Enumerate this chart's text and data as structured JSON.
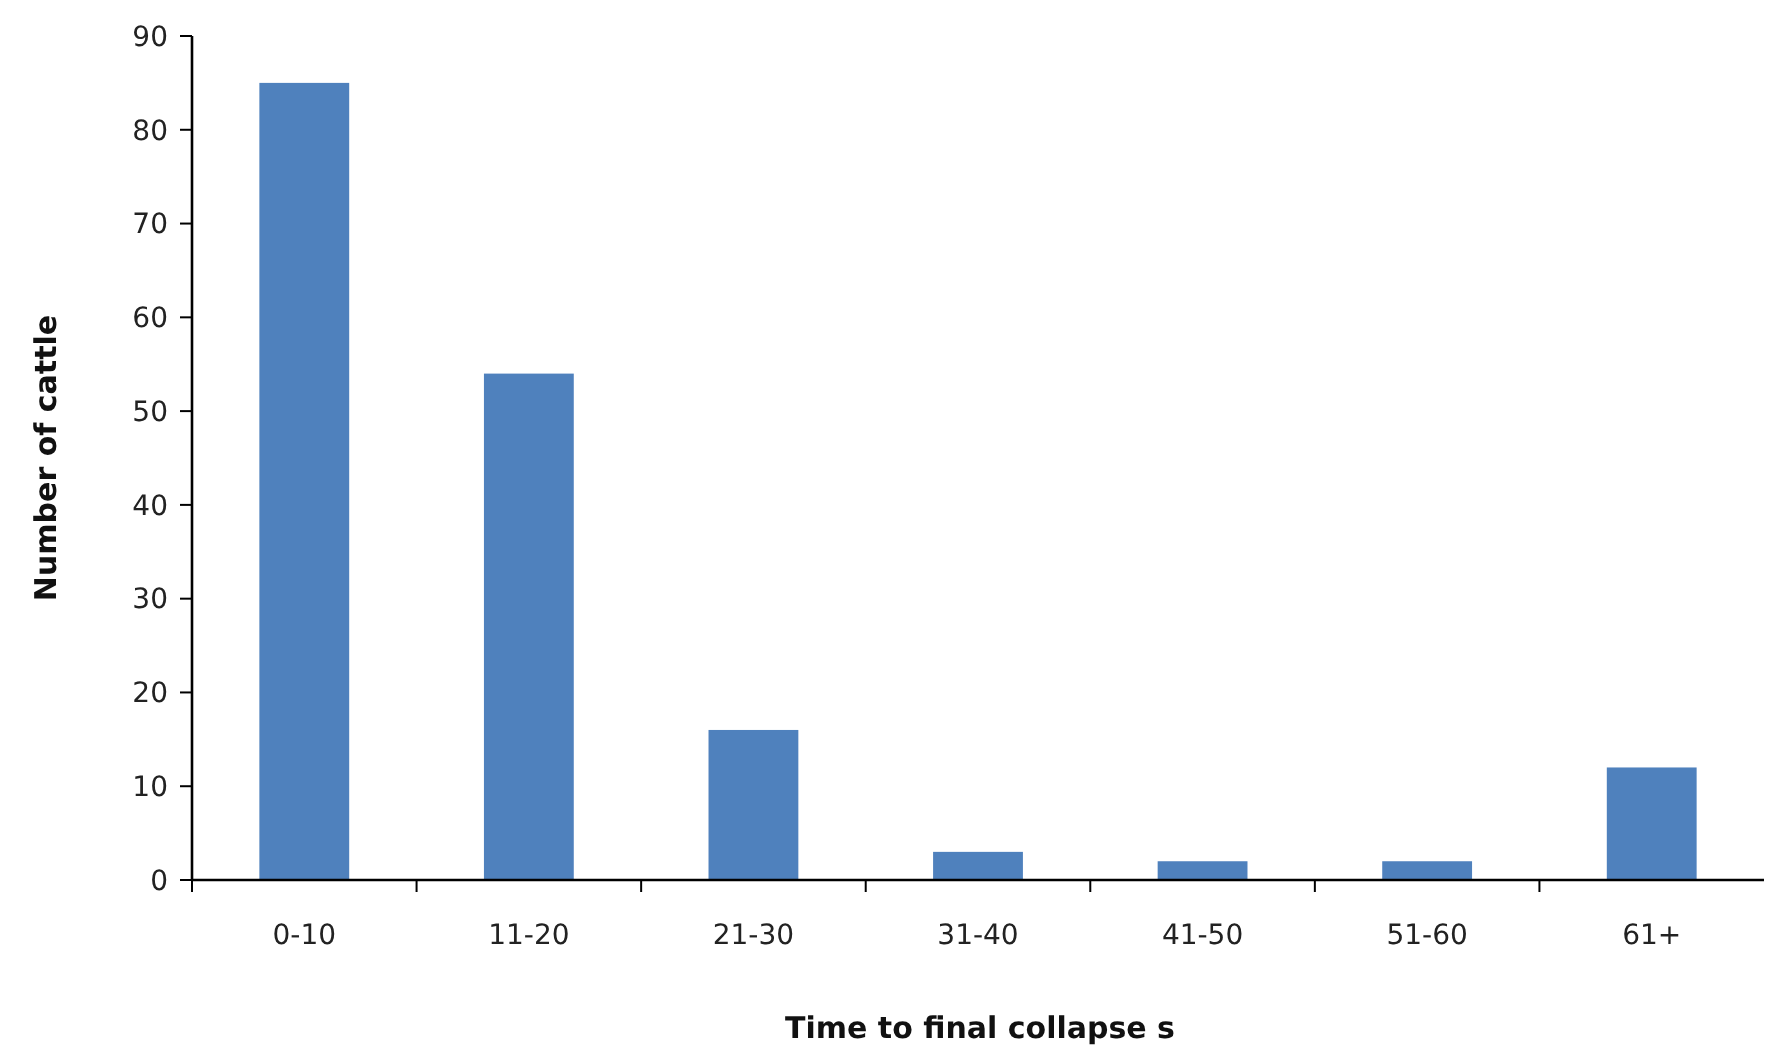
{
  "chart_data": {
    "type": "bar",
    "xlabel": "Time to final collapse s",
    "ylabel": "Number of cattle",
    "categories": [
      "0-10",
      "11-20",
      "21-30",
      "31-40",
      "41-50",
      "51-60",
      "61+"
    ],
    "values": [
      85,
      54,
      16,
      3,
      2,
      2,
      12
    ],
    "color": "#4f81bd",
    "ylim": [
      0,
      90
    ],
    "yticks": [
      0,
      10,
      20,
      30,
      40,
      50,
      60,
      70,
      80,
      90
    ],
    "grid": false
  }
}
